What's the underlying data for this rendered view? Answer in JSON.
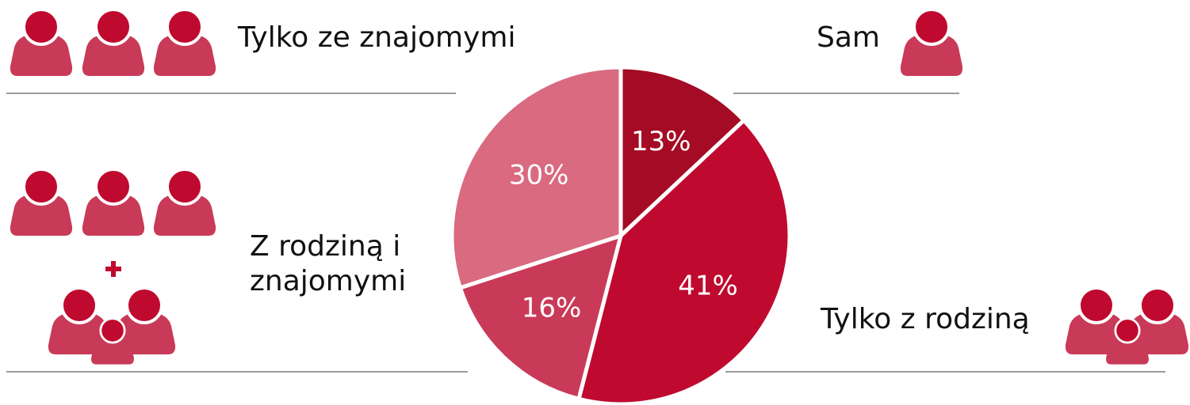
{
  "chart_data": {
    "type": "pie",
    "categories": [
      "Sam",
      "Tylko z rodziną",
      "Z rodziną i znajomymi",
      "Tylko ze znajomymi"
    ],
    "values": [
      13,
      41,
      16,
      30
    ],
    "value_labels": [
      "13%",
      "41%",
      "16%",
      "30%"
    ],
    "colors": [
      "#a50b24",
      "#c0092f",
      "#c93a58",
      "#d96a80"
    ]
  }
}
